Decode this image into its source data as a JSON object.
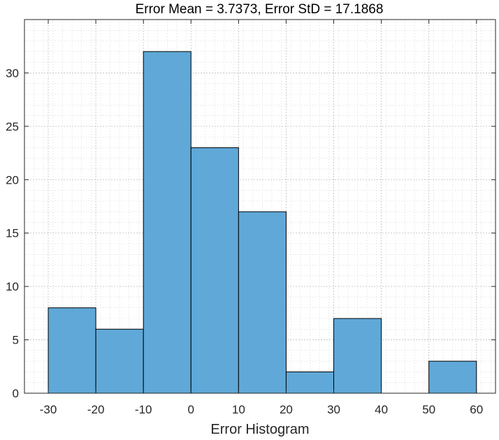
{
  "chart_data": {
    "type": "bar",
    "title": "Error Mean = 3.7373, Error StD = 17.1868",
    "xlabel": "Error Histogram",
    "ylabel": "",
    "bin_edges": [
      -30,
      -20,
      -10,
      0,
      10,
      20,
      30,
      40,
      50,
      60
    ],
    "values": [
      8,
      6,
      32,
      23,
      17,
      2,
      7,
      0,
      3
    ],
    "xlim": [
      -35,
      64
    ],
    "ylim": [
      0,
      35
    ],
    "xticks": [
      -30,
      -20,
      -10,
      0,
      10,
      20,
      30,
      40,
      50,
      60
    ],
    "yticks": [
      0,
      5,
      10,
      15,
      20,
      25,
      30
    ],
    "grid": true,
    "minor_grid": true,
    "bar_color": "#5fa8d8",
    "edge_color": "#000000"
  }
}
